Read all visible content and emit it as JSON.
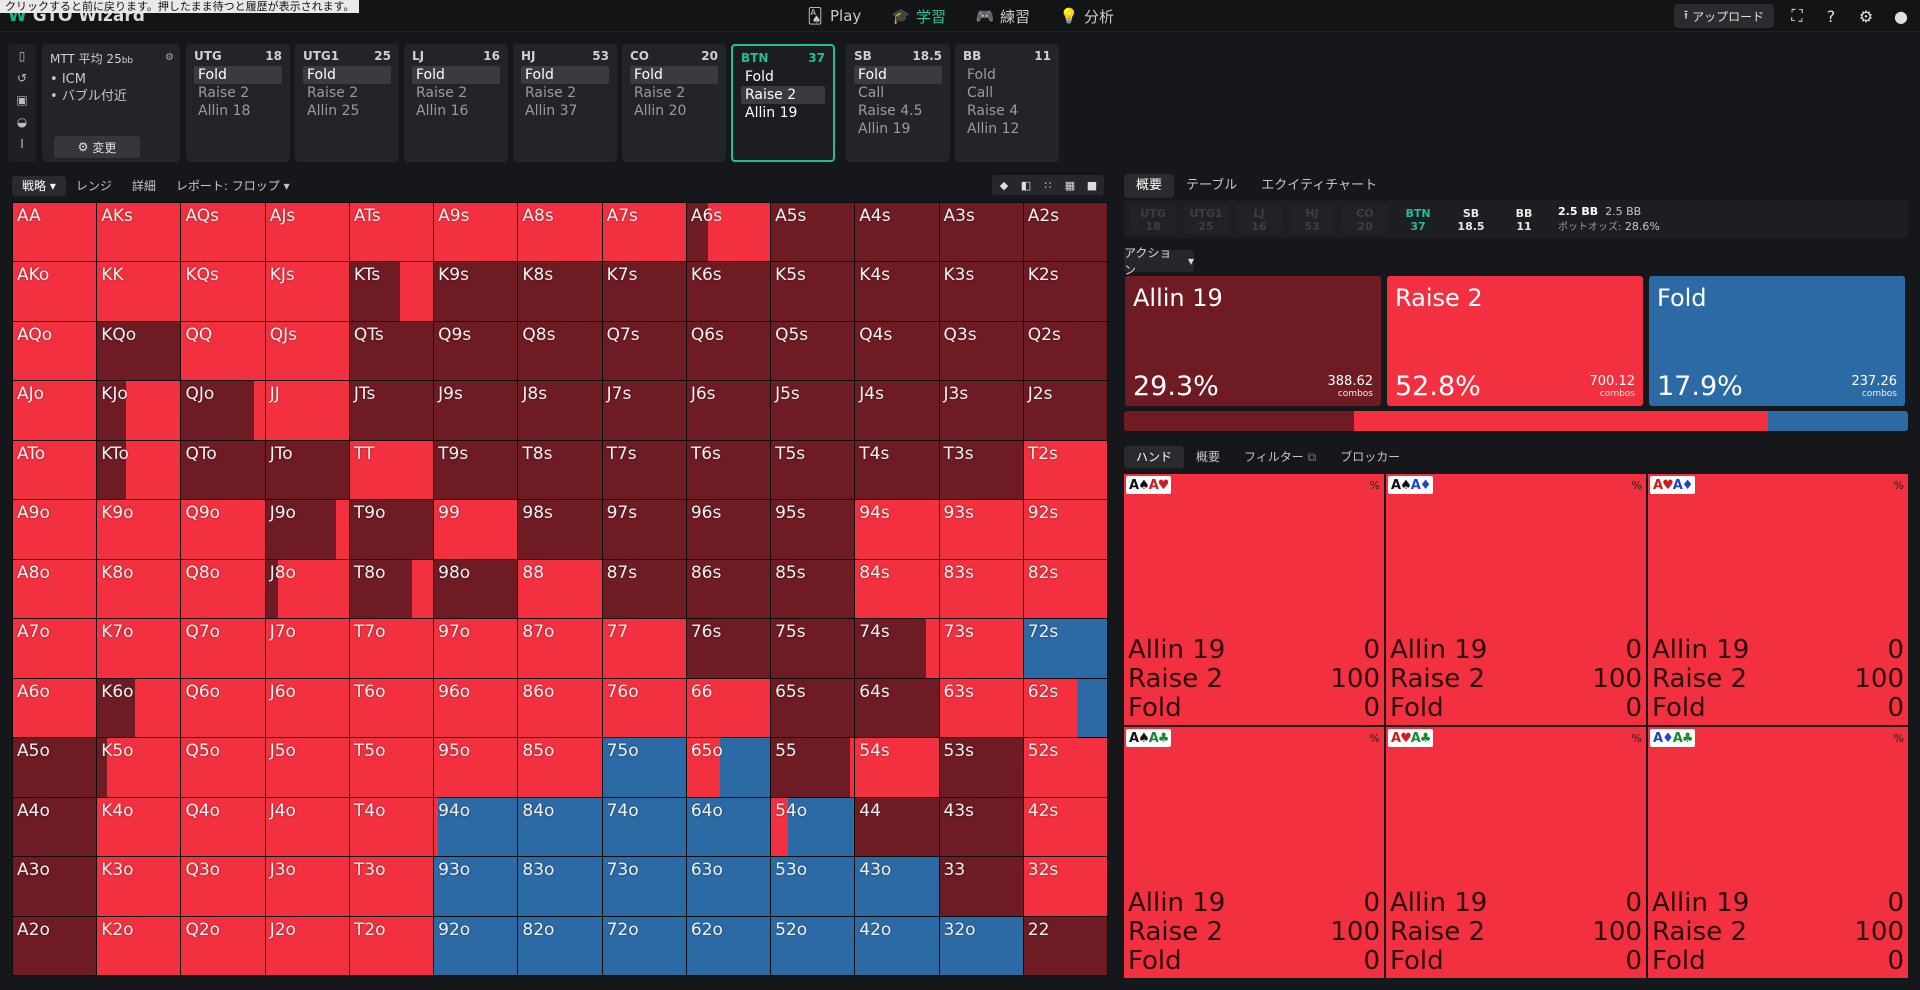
{
  "tooltip": "クリックすると前に戻ります。押したまま待つと履歴が表示されます。",
  "app": {
    "logo": "GTO Wizard"
  },
  "nav": [
    {
      "label": "Play",
      "icon": "cards-icon"
    },
    {
      "label": "学習",
      "icon": "graduation-cap-icon"
    },
    {
      "label": "練習",
      "icon": "gamepad-icon"
    },
    {
      "label": "分析",
      "icon": "bulb-icon"
    }
  ],
  "toolbar": {
    "upload": "アップロード"
  },
  "tournament": {
    "title": "MTT 平均 25",
    "bb_unit": "bb",
    "tags": [
      "ICM",
      "バブル付近"
    ],
    "change": "変更"
  },
  "positions": [
    {
      "name": "UTG",
      "stack": "18",
      "actions": [
        "Fold",
        "Raise 2",
        "Allin 18"
      ],
      "selected": 0
    },
    {
      "name": "UTG1",
      "stack": "25",
      "actions": [
        "Fold",
        "Raise 2",
        "Allin 25"
      ],
      "selected": 0
    },
    {
      "name": "LJ",
      "stack": "16",
      "actions": [
        "Fold",
        "Raise 2",
        "Allin 16"
      ],
      "selected": 0
    },
    {
      "name": "HJ",
      "stack": "53",
      "actions": [
        "Fold",
        "Raise 2",
        "Allin 37"
      ],
      "selected": 0
    },
    {
      "name": "CO",
      "stack": "20",
      "actions": [
        "Fold",
        "Raise 2",
        "Allin 20"
      ],
      "selected": 0
    },
    {
      "name": "BTN",
      "stack": "37",
      "actions": [
        "Fold",
        "Raise 2",
        "Allin 19"
      ],
      "selected": 1
    },
    {
      "name": "SB",
      "stack": "18.5",
      "actions": [
        "Fold",
        "Call",
        "Raise 4.5",
        "Allin 19"
      ],
      "selected": 0
    },
    {
      "name": "BB",
      "stack": "11",
      "actions": [
        "Fold",
        "Call",
        "Raise 4",
        "Allin 12"
      ],
      "selected": -1
    }
  ],
  "left_tabs": [
    "戦略",
    "レンジ",
    "詳細",
    "レポート: フロップ"
  ],
  "right_tabs": [
    "概要",
    "テーブル",
    "エクイティチャート"
  ],
  "stack_chips": [
    {
      "pos": "UTG",
      "val": "18",
      "state": "off"
    },
    {
      "pos": "UTG1",
      "val": "25",
      "state": "off"
    },
    {
      "pos": "LJ",
      "val": "16",
      "state": "off"
    },
    {
      "pos": "HJ",
      "val": "53",
      "state": "off"
    },
    {
      "pos": "CO",
      "val": "20",
      "state": "off"
    },
    {
      "pos": "BTN",
      "val": "37",
      "state": "btn"
    },
    {
      "pos": "SB",
      "val": "18.5",
      "state": "on"
    },
    {
      "pos": "BB",
      "val": "11",
      "state": "on"
    }
  ],
  "pot": {
    "main": "2.5 BB",
    "secondary": "2.5 BB",
    "odds_label": "ポットオッズ:",
    "odds": "28.6%"
  },
  "action_dropdown": "アクション",
  "colors": {
    "allin": "#6e1b24",
    "raise": "#f3303f",
    "fold": "#2c6aa6",
    "accent": "#1fbf98"
  },
  "actions_summary": [
    {
      "name": "Allin 19",
      "pct": "29.3%",
      "pct_value": 29.3,
      "combos": "388.62",
      "unit": "combos",
      "color": "#6e1b24"
    },
    {
      "name": "Raise 2",
      "pct": "52.8%",
      "pct_value": 52.8,
      "combos": "700.12",
      "unit": "combos",
      "color": "#f3303f"
    },
    {
      "name": "Fold",
      "pct": "17.9%",
      "pct_value": 17.9,
      "combos": "237.26",
      "unit": "combos",
      "color": "#2c6aa6"
    }
  ],
  "hand_tabs": [
    "ハンド",
    "概要",
    "フィルター",
    "ブロッカー"
  ],
  "hand_combos": [
    {
      "c1": "A",
      "s1": "♠",
      "col1": "k",
      "c2": "A",
      "s2": "♥",
      "col2": "r",
      "rows": [
        [
          "Allin 19",
          "0"
        ],
        [
          "Raise 2",
          "100"
        ],
        [
          "Fold",
          "0"
        ]
      ]
    },
    {
      "c1": "A",
      "s1": "♠",
      "col1": "k",
      "c2": "A",
      "s2": "♦",
      "col2": "b",
      "rows": [
        [
          "Allin 19",
          "0"
        ],
        [
          "Raise 2",
          "100"
        ],
        [
          "Fold",
          "0"
        ]
      ]
    },
    {
      "c1": "A",
      "s1": "♥",
      "col1": "r",
      "c2": "A",
      "s2": "♦",
      "col2": "b",
      "rows": [
        [
          "Allin 19",
          "0"
        ],
        [
          "Raise 2",
          "100"
        ],
        [
          "Fold",
          "0"
        ]
      ]
    },
    {
      "c1": "A",
      "s1": "♠",
      "col1": "k",
      "c2": "A",
      "s2": "♣",
      "col2": "g",
      "rows": [
        [
          "Allin 19",
          "0"
        ],
        [
          "Raise 2",
          "100"
        ],
        [
          "Fold",
          "0"
        ]
      ]
    },
    {
      "c1": "A",
      "s1": "♥",
      "col1": "r",
      "c2": "A",
      "s2": "♣",
      "col2": "g",
      "rows": [
        [
          "Allin 19",
          "0"
        ],
        [
          "Raise 2",
          "100"
        ],
        [
          "Fold",
          "0"
        ]
      ]
    },
    {
      "c1": "A",
      "s1": "♦",
      "col1": "b",
      "c2": "A",
      "s2": "♣",
      "col2": "g",
      "rows": [
        [
          "Allin 19",
          "0"
        ],
        [
          "Raise 2",
          "100"
        ],
        [
          "Fold",
          "0"
        ]
      ]
    }
  ],
  "hand_pct_symbol": "%",
  "grid": {
    "rows": [
      [
        "AA",
        "AKs",
        "AQs",
        "AJs",
        "ATs",
        "A9s",
        "A8s",
        "A7s",
        "A6s",
        "A5s",
        "A4s",
        "A3s",
        "A2s"
      ],
      [
        "AKo",
        "KK",
        "KQs",
        "KJs",
        "KTs",
        "K9s",
        "K8s",
        "K7s",
        "K6s",
        "K5s",
        "K4s",
        "K3s",
        "K2s"
      ],
      [
        "AQo",
        "KQo",
        "QQ",
        "QJs",
        "QTs",
        "Q9s",
        "Q8s",
        "Q7s",
        "Q6s",
        "Q5s",
        "Q4s",
        "Q3s",
        "Q2s"
      ],
      [
        "AJo",
        "KJo",
        "QJo",
        "JJ",
        "JTs",
        "J9s",
        "J8s",
        "J7s",
        "J6s",
        "J5s",
        "J4s",
        "J3s",
        "J2s"
      ],
      [
        "ATo",
        "KTo",
        "QTo",
        "JTo",
        "TT",
        "T9s",
        "T8s",
        "T7s",
        "T6s",
        "T5s",
        "T4s",
        "T3s",
        "T2s"
      ],
      [
        "A9o",
        "K9o",
        "Q9o",
        "J9o",
        "T9o",
        "99",
        "98s",
        "97s",
        "96s",
        "95s",
        "94s",
        "93s",
        "92s"
      ],
      [
        "A8o",
        "K8o",
        "Q8o",
        "J8o",
        "T8o",
        "98o",
        "88",
        "87s",
        "86s",
        "85s",
        "84s",
        "83s",
        "82s"
      ],
      [
        "A7o",
        "K7o",
        "Q7o",
        "J7o",
        "T7o",
        "97o",
        "87o",
        "77",
        "76s",
        "75s",
        "74s",
        "73s",
        "72s"
      ],
      [
        "A6o",
        "K6o",
        "Q6o",
        "J6o",
        "T6o",
        "96o",
        "86o",
        "76o",
        "66",
        "65s",
        "64s",
        "63s",
        "62s"
      ],
      [
        "A5o",
        "K5o",
        "Q5o",
        "J5o",
        "T5o",
        "95o",
        "85o",
        "75o",
        "65o",
        "55",
        "54s",
        "53s",
        "52s"
      ],
      [
        "A4o",
        "K4o",
        "Q4o",
        "J4o",
        "T4o",
        "94o",
        "84o",
        "74o",
        "64o",
        "54o",
        "44",
        "43s",
        "42s"
      ],
      [
        "A3o",
        "K3o",
        "Q3o",
        "J3o",
        "T3o",
        "93o",
        "83o",
        "73o",
        "63o",
        "53o",
        "43o",
        "33",
        "32s"
      ],
      [
        "A2o",
        "K2o",
        "Q2o",
        "J2o",
        "T2o",
        "92o",
        "82o",
        "72o",
        "62o",
        "52o",
        "42o",
        "32o",
        "22"
      ]
    ],
    "freqs": [
      [
        [
          0,
          100,
          0
        ],
        [
          0,
          100,
          0
        ],
        [
          0,
          100,
          0
        ],
        [
          0,
          100,
          0
        ],
        [
          0,
          100,
          0
        ],
        [
          0,
          100,
          0
        ],
        [
          0,
          100,
          0
        ],
        [
          0,
          100,
          0
        ],
        [
          25,
          75,
          0
        ],
        [
          100,
          0,
          0
        ],
        [
          100,
          0,
          0
        ],
        [
          100,
          0,
          0
        ],
        [
          100,
          0,
          0
        ]
      ],
      [
        [
          0,
          100,
          0
        ],
        [
          0,
          100,
          0
        ],
        [
          0,
          100,
          0
        ],
        [
          0,
          100,
          0
        ],
        [
          60,
          40,
          0
        ],
        [
          100,
          0,
          0
        ],
        [
          100,
          0,
          0
        ],
        [
          100,
          0,
          0
        ],
        [
          100,
          0,
          0
        ],
        [
          100,
          0,
          0
        ],
        [
          100,
          0,
          0
        ],
        [
          100,
          0,
          0
        ],
        [
          100,
          0,
          0
        ]
      ],
      [
        [
          0,
          100,
          0
        ],
        [
          100,
          0,
          0
        ],
        [
          0,
          100,
          0
        ],
        [
          0,
          100,
          0
        ],
        [
          100,
          0,
          0
        ],
        [
          100,
          0,
          0
        ],
        [
          100,
          0,
          0
        ],
        [
          100,
          0,
          0
        ],
        [
          100,
          0,
          0
        ],
        [
          100,
          0,
          0
        ],
        [
          100,
          0,
          0
        ],
        [
          100,
          0,
          0
        ],
        [
          100,
          0,
          0
        ]
      ],
      [
        [
          0,
          100,
          0
        ],
        [
          35,
          65,
          0
        ],
        [
          87,
          13,
          0
        ],
        [
          0,
          100,
          0
        ],
        [
          100,
          0,
          0
        ],
        [
          100,
          0,
          0
        ],
        [
          100,
          0,
          0
        ],
        [
          100,
          0,
          0
        ],
        [
          100,
          0,
          0
        ],
        [
          100,
          0,
          0
        ],
        [
          100,
          0,
          0
        ],
        [
          100,
          0,
          0
        ],
        [
          100,
          0,
          0
        ]
      ],
      [
        [
          0,
          100,
          0
        ],
        [
          35,
          65,
          0
        ],
        [
          100,
          0,
          0
        ],
        [
          100,
          0,
          0
        ],
        [
          0,
          100,
          0
        ],
        [
          100,
          0,
          0
        ],
        [
          100,
          0,
          0
        ],
        [
          100,
          0,
          0
        ],
        [
          100,
          0,
          0
        ],
        [
          100,
          0,
          0
        ],
        [
          100,
          0,
          0
        ],
        [
          100,
          0,
          0
        ],
        [
          0,
          100,
          0
        ]
      ],
      [
        [
          0,
          100,
          0
        ],
        [
          0,
          100,
          0
        ],
        [
          0,
          100,
          0
        ],
        [
          85,
          15,
          0
        ],
        [
          100,
          0,
          0
        ],
        [
          0,
          100,
          0
        ],
        [
          100,
          0,
          0
        ],
        [
          100,
          0,
          0
        ],
        [
          100,
          0,
          0
        ],
        [
          100,
          0,
          0
        ],
        [
          0,
          100,
          0
        ],
        [
          0,
          100,
          0
        ],
        [
          0,
          100,
          0
        ]
      ],
      [
        [
          0,
          100,
          0
        ],
        [
          0,
          100,
          0
        ],
        [
          0,
          100,
          0
        ],
        [
          15,
          85,
          0
        ],
        [
          75,
          25,
          0
        ],
        [
          100,
          0,
          0
        ],
        [
          0,
          100,
          0
        ],
        [
          100,
          0,
          0
        ],
        [
          100,
          0,
          0
        ],
        [
          100,
          0,
          0
        ],
        [
          0,
          100,
          0
        ],
        [
          0,
          100,
          0
        ],
        [
          0,
          100,
          0
        ]
      ],
      [
        [
          0,
          100,
          0
        ],
        [
          0,
          100,
          0
        ],
        [
          0,
          100,
          0
        ],
        [
          0,
          100,
          0
        ],
        [
          0,
          100,
          0
        ],
        [
          0,
          100,
          0
        ],
        [
          0,
          100,
          0
        ],
        [
          0,
          100,
          0
        ],
        [
          100,
          0,
          0
        ],
        [
          100,
          0,
          0
        ],
        [
          85,
          15,
          0
        ],
        [
          0,
          100,
          0
        ],
        [
          0,
          0,
          100
        ]
      ],
      [
        [
          0,
          100,
          0
        ],
        [
          45,
          55,
          0
        ],
        [
          0,
          100,
          0
        ],
        [
          0,
          100,
          0
        ],
        [
          0,
          100,
          0
        ],
        [
          0,
          100,
          0
        ],
        [
          0,
          100,
          0
        ],
        [
          0,
          100,
          0
        ],
        [
          0,
          100,
          0
        ],
        [
          100,
          0,
          0
        ],
        [
          100,
          0,
          0
        ],
        [
          0,
          100,
          0
        ],
        [
          0,
          64,
          36
        ]
      ],
      [
        [
          100,
          0,
          0
        ],
        [
          12,
          88,
          0
        ],
        [
          0,
          100,
          0
        ],
        [
          0,
          100,
          0
        ],
        [
          0,
          100,
          0
        ],
        [
          0,
          100,
          0
        ],
        [
          0,
          100,
          0
        ],
        [
          0,
          0,
          100
        ],
        [
          0,
          40,
          60
        ],
        [
          95,
          5,
          0
        ],
        [
          0,
          100,
          0
        ],
        [
          100,
          0,
          0
        ],
        [
          0,
          100,
          0
        ]
      ],
      [
        [
          100,
          0,
          0
        ],
        [
          0,
          100,
          0
        ],
        [
          0,
          100,
          0
        ],
        [
          0,
          100,
          0
        ],
        [
          0,
          100,
          0
        ],
        [
          0,
          5,
          95
        ],
        [
          0,
          0,
          100
        ],
        [
          0,
          0,
          100
        ],
        [
          0,
          0,
          100
        ],
        [
          0,
          20,
          80
        ],
        [
          100,
          0,
          0
        ],
        [
          100,
          0,
          0
        ],
        [
          0,
          100,
          0
        ]
      ],
      [
        [
          100,
          0,
          0
        ],
        [
          0,
          100,
          0
        ],
        [
          0,
          100,
          0
        ],
        [
          0,
          100,
          0
        ],
        [
          0,
          100,
          0
        ],
        [
          0,
          0,
          100
        ],
        [
          0,
          0,
          100
        ],
        [
          0,
          0,
          100
        ],
        [
          0,
          0,
          100
        ],
        [
          0,
          0,
          100
        ],
        [
          0,
          0,
          100
        ],
        [
          100,
          0,
          0
        ],
        [
          0,
          100,
          0
        ]
      ],
      [
        [
          100,
          0,
          0
        ],
        [
          0,
          100,
          0
        ],
        [
          0,
          100,
          0
        ],
        [
          0,
          100,
          0
        ],
        [
          0,
          100,
          0
        ],
        [
          0,
          0,
          100
        ],
        [
          0,
          0,
          100
        ],
        [
          0,
          0,
          100
        ],
        [
          0,
          0,
          100
        ],
        [
          0,
          0,
          100
        ],
        [
          0,
          0,
          100
        ],
        [
          0,
          0,
          100
        ],
        [
          100,
          0,
          0
        ]
      ]
    ]
  }
}
